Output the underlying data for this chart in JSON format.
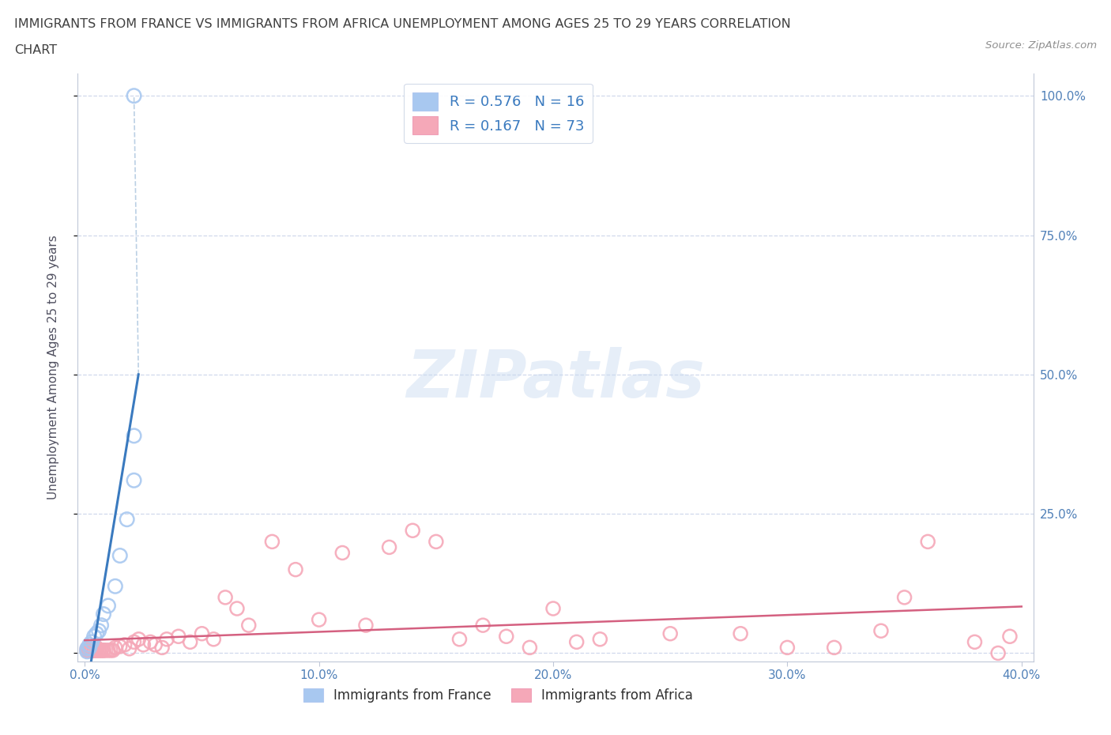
{
  "title_line1": "IMMIGRANTS FROM FRANCE VS IMMIGRANTS FROM AFRICA UNEMPLOYMENT AMONG AGES 25 TO 29 YEARS CORRELATION",
  "title_line2": "CHART",
  "source": "Source: ZipAtlas.com",
  "ylabel": "Unemployment Among Ages 25 to 29 years",
  "france_R": 0.576,
  "france_N": 16,
  "africa_R": 0.167,
  "africa_N": 73,
  "france_color": "#a8c8f0",
  "africa_color": "#f5a8b8",
  "france_line_color": "#3a7abf",
  "africa_line_color": "#d46080",
  "dash_line_color": "#b0c8e0",
  "watermark": "ZIPatlas",
  "france_x": [
    0.001,
    0.001,
    0.002,
    0.002,
    0.003,
    0.004,
    0.005,
    0.006,
    0.007,
    0.008,
    0.01,
    0.013,
    0.015,
    0.018,
    0.021,
    0.021
  ],
  "france_y": [
    0.003,
    0.008,
    0.01,
    0.015,
    0.02,
    0.03,
    0.035,
    0.04,
    0.05,
    0.07,
    0.085,
    0.12,
    0.175,
    0.24,
    0.31,
    0.39
  ],
  "france_outlier_x": [
    0.021
  ],
  "france_outlier_y": [
    1.0
  ],
  "africa_x": [
    0.001,
    0.001,
    0.001,
    0.001,
    0.002,
    0.002,
    0.002,
    0.002,
    0.002,
    0.003,
    0.003,
    0.003,
    0.003,
    0.004,
    0.004,
    0.004,
    0.005,
    0.005,
    0.005,
    0.005,
    0.006,
    0.006,
    0.007,
    0.007,
    0.008,
    0.008,
    0.009,
    0.01,
    0.011,
    0.012,
    0.013,
    0.015,
    0.017,
    0.019,
    0.021,
    0.023,
    0.025,
    0.028,
    0.03,
    0.033,
    0.035,
    0.04,
    0.045,
    0.05,
    0.055,
    0.06,
    0.065,
    0.07,
    0.08,
    0.09,
    0.1,
    0.11,
    0.12,
    0.13,
    0.14,
    0.15,
    0.16,
    0.18,
    0.2,
    0.22,
    0.25,
    0.28,
    0.3,
    0.32,
    0.34,
    0.35,
    0.36,
    0.38,
    0.39,
    0.395,
    0.17,
    0.19,
    0.21
  ],
  "africa_y": [
    0.005,
    0.005,
    0.005,
    0.008,
    0.005,
    0.005,
    0.005,
    0.005,
    0.008,
    0.005,
    0.005,
    0.005,
    0.01,
    0.005,
    0.005,
    0.005,
    0.005,
    0.005,
    0.008,
    0.01,
    0.005,
    0.005,
    0.005,
    0.005,
    0.005,
    0.005,
    0.005,
    0.005,
    0.005,
    0.005,
    0.01,
    0.012,
    0.015,
    0.008,
    0.02,
    0.025,
    0.015,
    0.02,
    0.015,
    0.01,
    0.025,
    0.03,
    0.02,
    0.035,
    0.025,
    0.1,
    0.08,
    0.05,
    0.2,
    0.15,
    0.06,
    0.18,
    0.05,
    0.19,
    0.22,
    0.2,
    0.025,
    0.03,
    0.08,
    0.025,
    0.035,
    0.035,
    0.01,
    0.01,
    0.04,
    0.1,
    0.2,
    0.02,
    0.0,
    0.03,
    0.05,
    0.01,
    0.02
  ],
  "xlim_min": -0.003,
  "xlim_max": 0.405,
  "ylim_min": -0.015,
  "ylim_max": 1.04,
  "xtick_vals": [
    0.0,
    0.1,
    0.2,
    0.3,
    0.4
  ],
  "xtick_labels": [
    "0.0%",
    "10.0%",
    "20.0%",
    "30.0%",
    "40.0%"
  ],
  "ytick_vals": [
    0.0,
    0.25,
    0.5,
    0.75,
    1.0
  ],
  "ytick_labels_right": [
    "",
    "25.0%",
    "50.0%",
    "75.0%",
    "100.0%"
  ],
  "grid_color": "#d0d8ec",
  "background_color": "#ffffff",
  "title_color": "#404040",
  "tick_color": "#5080b8",
  "legend_edge_color": "#d0d8e8",
  "bottom_legend_labels": [
    "Immigrants from France",
    "Immigrants from Africa"
  ]
}
